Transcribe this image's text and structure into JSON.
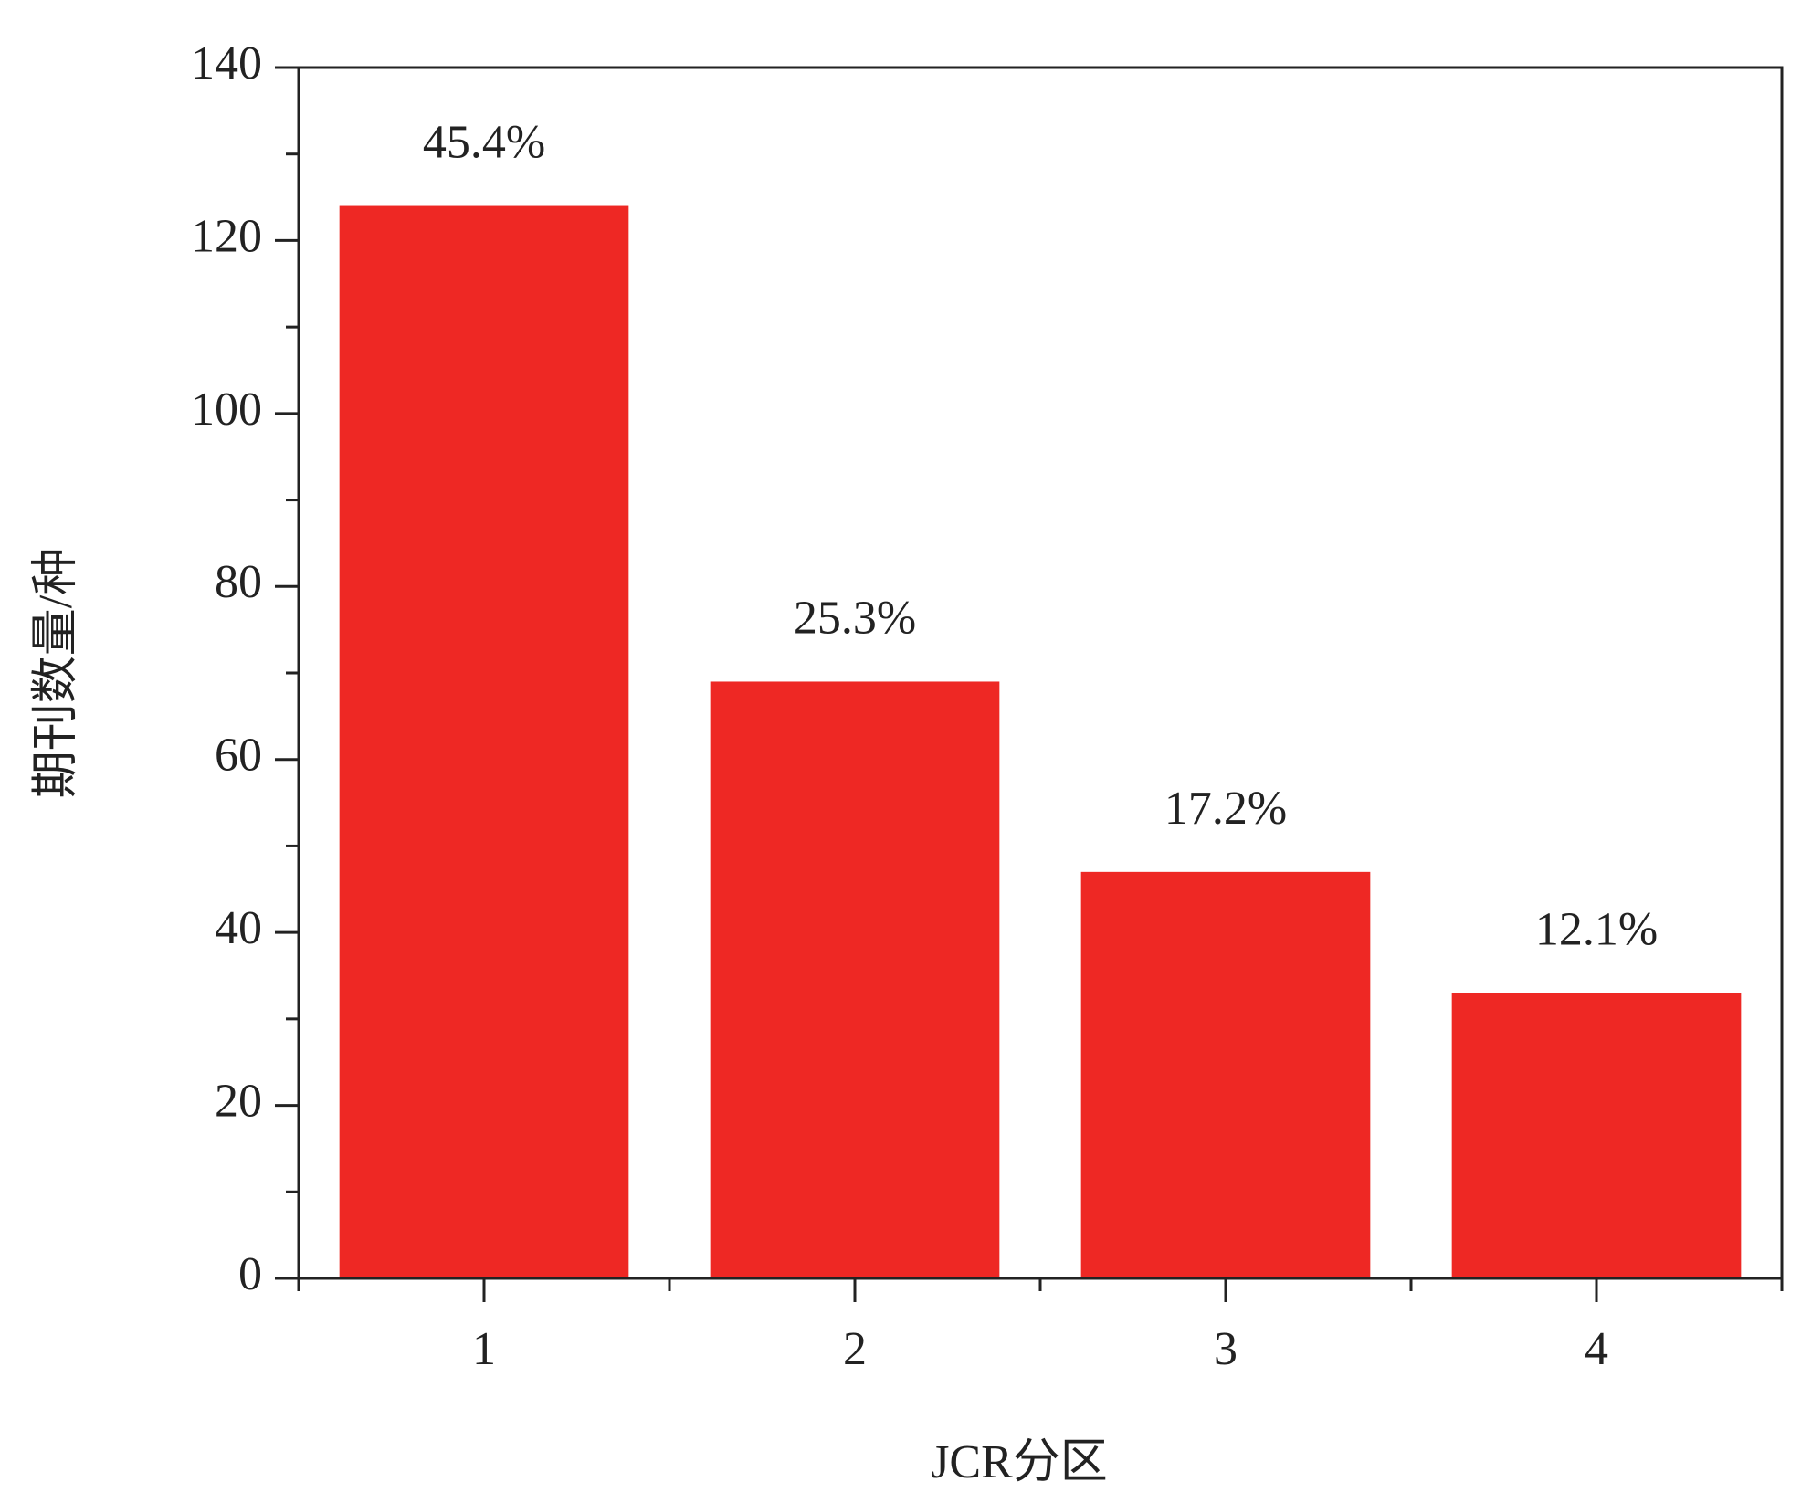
{
  "chart_data": {
    "type": "bar",
    "x_label": "JCR分区",
    "y_label": "期刊数量/种",
    "categories": [
      "1",
      "2",
      "3",
      "4"
    ],
    "values": [
      124,
      69,
      47,
      33
    ],
    "annotations": [
      "45.4%",
      "25.3%",
      "17.2%",
      "12.1%"
    ],
    "color": "#ee2824",
    "ylim": [
      0,
      140
    ],
    "yticks": [
      0,
      20,
      40,
      60,
      80,
      100,
      120,
      140
    ],
    "yminorticks": [
      10,
      30,
      50,
      70,
      90,
      110,
      130
    ],
    "grid": false
  }
}
